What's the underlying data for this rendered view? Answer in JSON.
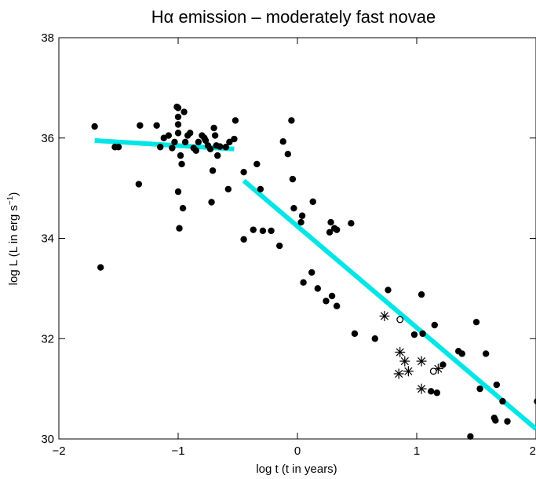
{
  "chart_data": {
    "type": "scatter",
    "title": "Hα emission – moderately fast novae",
    "xlabel": "log t (t in years)",
    "ylabel_main": "log L (L in erg s",
    "ylabel_sup": "−1",
    "ylabel_close": ")",
    "xlim": [
      -2,
      2
    ],
    "ylim": [
      30,
      38
    ],
    "xticks": [
      -2,
      -1,
      0,
      1,
      2
    ],
    "xtick_labels": [
      "−2",
      "−1",
      "0",
      "1",
      "2"
    ],
    "yticks": [
      30,
      32,
      34,
      36,
      38
    ],
    "ytick_labels": [
      "30",
      "32",
      "34",
      "36",
      "38"
    ],
    "grid": false,
    "fit_color": "#00e5e5",
    "series": [
      {
        "marker": "filled-circle",
        "points": [
          [
            -1.7,
            36.23
          ],
          [
            -1.65,
            33.42
          ],
          [
            -1.53,
            35.82
          ],
          [
            -1.5,
            35.82
          ],
          [
            -1.33,
            35.08
          ],
          [
            -1.32,
            36.25
          ],
          [
            -1.18,
            36.25
          ],
          [
            -1.15,
            35.82
          ],
          [
            -1.12,
            36.0
          ],
          [
            -1.08,
            36.05
          ],
          [
            -1.05,
            35.8
          ],
          [
            -1.03,
            35.92
          ],
          [
            -1.01,
            36.62
          ],
          [
            -1.0,
            36.6
          ],
          [
            -1.0,
            36.42
          ],
          [
            -1.0,
            36.27
          ],
          [
            -1.0,
            36.1
          ],
          [
            -1.0,
            34.93
          ],
          [
            -0.99,
            34.2
          ],
          [
            -0.98,
            35.65
          ],
          [
            -0.97,
            35.48
          ],
          [
            -0.96,
            34.6
          ],
          [
            -0.95,
            36.52
          ],
          [
            -0.94,
            35.92
          ],
          [
            -0.92,
            36.05
          ],
          [
            -0.9,
            36.1
          ],
          [
            -0.87,
            35.8
          ],
          [
            -0.85,
            35.75
          ],
          [
            -0.83,
            35.92
          ],
          [
            -0.8,
            36.05
          ],
          [
            -0.78,
            36.0
          ],
          [
            -0.77,
            35.95
          ],
          [
            -0.75,
            35.85
          ],
          [
            -0.73,
            35.78
          ],
          [
            -0.72,
            34.72
          ],
          [
            -0.71,
            35.35
          ],
          [
            -0.7,
            36.2
          ],
          [
            -0.69,
            36.05
          ],
          [
            -0.68,
            35.85
          ],
          [
            -0.67,
            35.65
          ],
          [
            -0.65,
            35.83
          ],
          [
            -0.6,
            35.82
          ],
          [
            -0.58,
            34.98
          ],
          [
            -0.57,
            35.92
          ],
          [
            -0.53,
            35.98
          ],
          [
            -0.52,
            36.35
          ],
          [
            -0.45,
            33.98
          ],
          [
            -0.45,
            35.32
          ],
          [
            -0.37,
            34.17
          ],
          [
            -0.34,
            35.48
          ],
          [
            -0.31,
            34.98
          ],
          [
            -0.29,
            34.15
          ],
          [
            -0.22,
            34.15
          ],
          [
            -0.15,
            33.85
          ],
          [
            -0.12,
            35.93
          ],
          [
            -0.08,
            35.68
          ],
          [
            -0.05,
            36.35
          ],
          [
            -0.04,
            35.18
          ],
          [
            -0.03,
            34.6
          ],
          [
            0.03,
            34.32
          ],
          [
            0.04,
            34.45
          ],
          [
            0.05,
            33.12
          ],
          [
            0.12,
            33.32
          ],
          [
            0.13,
            34.73
          ],
          [
            0.17,
            33.0
          ],
          [
            0.24,
            32.75
          ],
          [
            0.27,
            34.12
          ],
          [
            0.28,
            34.32
          ],
          [
            0.29,
            32.85
          ],
          [
            0.31,
            34.2
          ],
          [
            0.33,
            34.17
          ],
          [
            0.33,
            32.65
          ],
          [
            0.45,
            34.3
          ],
          [
            0.48,
            32.1
          ],
          [
            0.65,
            32.0
          ],
          [
            0.76,
            32.97
          ],
          [
            0.98,
            32.08
          ],
          [
            1.04,
            32.88
          ],
          [
            1.05,
            32.1
          ],
          [
            1.12,
            30.95
          ],
          [
            1.15,
            32.27
          ],
          [
            1.17,
            30.92
          ],
          [
            1.22,
            31.48
          ],
          [
            1.35,
            31.75
          ],
          [
            1.38,
            31.7
          ],
          [
            1.45,
            30.05
          ],
          [
            1.5,
            32.33
          ],
          [
            1.53,
            31.0
          ],
          [
            1.58,
            31.7
          ],
          [
            1.65,
            30.42
          ],
          [
            1.66,
            30.37
          ],
          [
            1.67,
            31.08
          ],
          [
            1.72,
            30.75
          ],
          [
            1.76,
            30.35
          ],
          [
            2.01,
            30.75
          ]
        ]
      },
      {
        "marker": "asterisk",
        "points": [
          [
            0.73,
            32.45
          ],
          [
            0.86,
            31.73
          ],
          [
            0.9,
            31.55
          ],
          [
            0.93,
            31.35
          ],
          [
            0.85,
            31.3
          ],
          [
            1.04,
            31.55
          ],
          [
            1.04,
            31.0
          ],
          [
            1.18,
            31.4
          ]
        ]
      },
      {
        "marker": "open-circle",
        "points": [
          [
            0.86,
            32.38
          ],
          [
            1.14,
            31.35
          ]
        ]
      }
    ],
    "fits": [
      {
        "x": [
          -1.7,
          -0.53
        ],
        "y": [
          35.95,
          35.78
        ]
      },
      {
        "x": [
          -0.45,
          2.0
        ],
        "y": [
          35.15,
          30.2
        ]
      }
    ]
  }
}
